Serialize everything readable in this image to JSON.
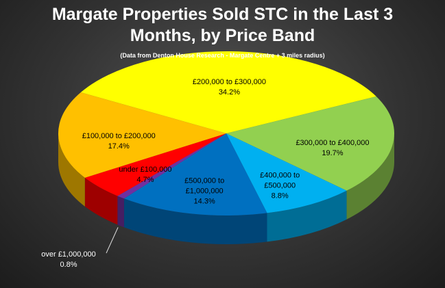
{
  "chart_data": {
    "type": "pie",
    "title": "Margate Properties Sold STC in the Last 3 Months, by Price Band",
    "subtitle": "(Data from Denton House Research - Margate Centre + 3 miles radius)",
    "categories": [
      "£200,000 to £300,000",
      "£300,000 to £400,000",
      "£400,000 to £500,000",
      "£500,000 to £1,000,000",
      "over £1,000,000",
      "under £100,000",
      "£100,000 to £200,000"
    ],
    "values": [
      34.2,
      19.7,
      8.8,
      14.3,
      0.8,
      4.7,
      17.4
    ],
    "value_labels": [
      "34.2%",
      "19.7%",
      "8.8%",
      "14.3%",
      "0.8%",
      "4.7%",
      "17.4%"
    ],
    "colors": [
      "#ffff00",
      "#92d050",
      "#00b0f0",
      "#0070c0",
      "#7030a0",
      "#ff0000",
      "#ffc000"
    ]
  }
}
